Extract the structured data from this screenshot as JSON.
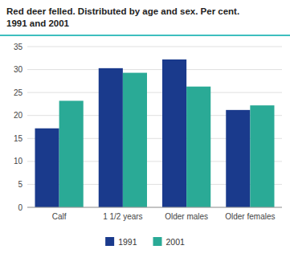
{
  "chart_data": {
    "type": "bar",
    "title": "Red deer felled. Distributed by age and sex. Per cent.",
    "subtitle": "1991 and 2001",
    "categories": [
      "Calf",
      "1 1/2 years",
      "Older males",
      "Older females"
    ],
    "series": [
      {
        "name": "1991",
        "color": "#1a3a8c",
        "values": [
          17.2,
          30.3,
          32.2,
          21.2
        ]
      },
      {
        "name": "2001",
        "color": "#2aaa96",
        "values": [
          23.2,
          29.3,
          26.3,
          22.2
        ]
      }
    ],
    "ylim": [
      0,
      35
    ],
    "yticks": [
      0,
      5,
      10,
      15,
      20,
      25,
      30,
      35
    ],
    "grid": true,
    "legend": "bottom"
  }
}
